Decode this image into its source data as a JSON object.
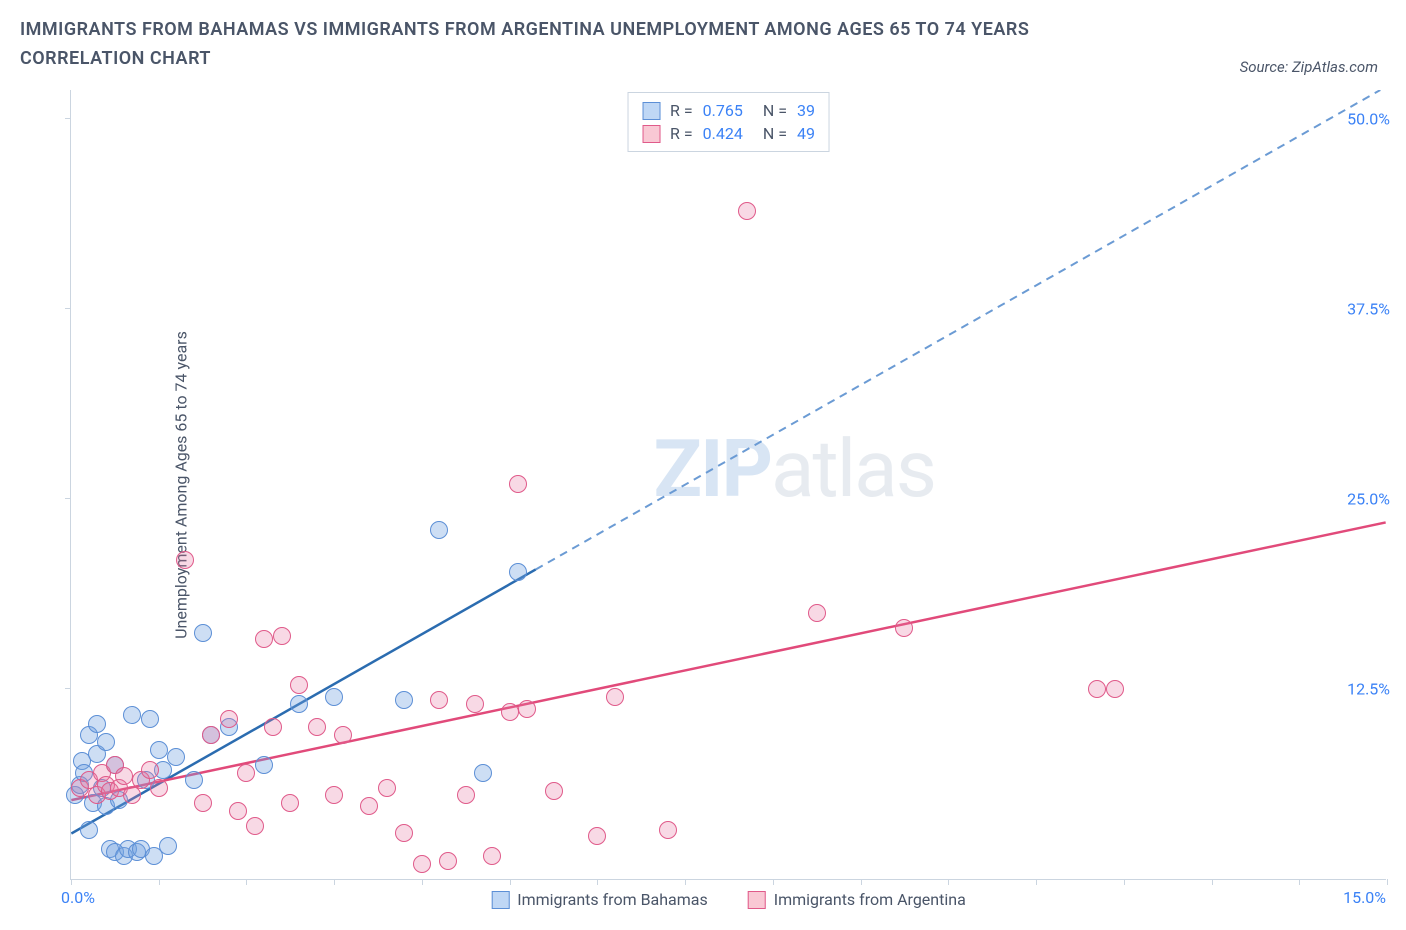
{
  "title": "IMMIGRANTS FROM BAHAMAS VS IMMIGRANTS FROM ARGENTINA UNEMPLOYMENT AMONG AGES 65 TO 74 YEARS CORRELATION CHART",
  "source": "Source: ZipAtlas.com",
  "y_axis_title": "Unemployment Among Ages 65 to 74 years",
  "watermark_zip": "ZIP",
  "watermark_atlas": "atlas",
  "chart": {
    "type": "scatter",
    "xlim": [
      0,
      15
    ],
    "ylim": [
      0,
      52
    ],
    "x_ticks": [
      0,
      1,
      2,
      3,
      4,
      5,
      6,
      7,
      8,
      9,
      10,
      11,
      12,
      13,
      14,
      15
    ],
    "y_ticks_labeled": [
      {
        "v": 12.5,
        "label": "12.5%"
      },
      {
        "v": 25.0,
        "label": "25.0%"
      },
      {
        "v": 37.5,
        "label": "37.5%"
      },
      {
        "v": 50.0,
        "label": "50.0%"
      }
    ],
    "x_start_label": "0.0%",
    "x_end_label": "15.0%",
    "background_color": "#ffffff",
    "axis_color": "#cbd5e0",
    "tick_label_color": "#3b82f6",
    "point_radius": 9,
    "series": [
      {
        "name": "Immigrants from Bahamas",
        "swatch_fill": "#bfd7f5",
        "swatch_stroke": "#5c8fd6",
        "point_fill": "rgba(112,161,224,0.35)",
        "point_stroke": "#5c8fd6",
        "R": "0.765",
        "N": "39",
        "trend": {
          "x1": 0,
          "y1": 3.0,
          "x2": 5.3,
          "y2": 20.4,
          "x2d": 15,
          "y2d": 52.2,
          "solid_color": "#2b6cb0",
          "dash_color": "#6b9bd4",
          "width": 2.5
        },
        "points": [
          [
            0.05,
            5.5
          ],
          [
            0.1,
            6.2
          ],
          [
            0.12,
            7.8
          ],
          [
            0.15,
            7.0
          ],
          [
            0.2,
            3.2
          ],
          [
            0.2,
            9.5
          ],
          [
            0.25,
            5.0
          ],
          [
            0.3,
            8.2
          ],
          [
            0.3,
            10.2
          ],
          [
            0.35,
            6.0
          ],
          [
            0.4,
            4.8
          ],
          [
            0.4,
            9.0
          ],
          [
            0.45,
            2.0
          ],
          [
            0.5,
            1.8
          ],
          [
            0.5,
            7.5
          ],
          [
            0.55,
            5.2
          ],
          [
            0.6,
            1.5
          ],
          [
            0.65,
            2.0
          ],
          [
            0.7,
            10.8
          ],
          [
            0.75,
            1.8
          ],
          [
            0.8,
            2.0
          ],
          [
            0.85,
            6.5
          ],
          [
            0.9,
            10.5
          ],
          [
            0.95,
            1.5
          ],
          [
            1.0,
            8.5
          ],
          [
            1.05,
            7.2
          ],
          [
            1.1,
            2.2
          ],
          [
            1.2,
            8.0
          ],
          [
            1.4,
            6.5
          ],
          [
            1.5,
            16.2
          ],
          [
            1.6,
            9.5
          ],
          [
            1.8,
            10.0
          ],
          [
            2.2,
            7.5
          ],
          [
            2.6,
            11.5
          ],
          [
            3.0,
            12.0
          ],
          [
            3.8,
            11.8
          ],
          [
            4.2,
            23.0
          ],
          [
            4.7,
            7.0
          ],
          [
            5.1,
            20.2
          ]
        ]
      },
      {
        "name": "Immigrants from Argentina",
        "swatch_fill": "#f9c8d4",
        "swatch_stroke": "#e05a8a",
        "point_fill": "rgba(230,120,160,0.28)",
        "point_stroke": "#e05a8a",
        "R": "0.424",
        "N": "49",
        "trend": {
          "x1": 0,
          "y1": 5.2,
          "x2": 15,
          "y2": 23.5,
          "solid_color": "#e14a7a",
          "width": 2.5
        },
        "points": [
          [
            0.1,
            6.0
          ],
          [
            0.2,
            6.5
          ],
          [
            0.3,
            5.5
          ],
          [
            0.35,
            7.0
          ],
          [
            0.4,
            6.2
          ],
          [
            0.45,
            5.8
          ],
          [
            0.5,
            7.5
          ],
          [
            0.55,
            6.0
          ],
          [
            0.6,
            6.8
          ],
          [
            0.7,
            5.5
          ],
          [
            0.8,
            6.5
          ],
          [
            0.9,
            7.2
          ],
          [
            1.0,
            6.0
          ],
          [
            1.3,
            21.0
          ],
          [
            1.5,
            5.0
          ],
          [
            1.6,
            9.5
          ],
          [
            1.8,
            10.5
          ],
          [
            1.9,
            4.5
          ],
          [
            2.0,
            7.0
          ],
          [
            2.1,
            3.5
          ],
          [
            2.2,
            15.8
          ],
          [
            2.3,
            10.0
          ],
          [
            2.4,
            16.0
          ],
          [
            2.5,
            5.0
          ],
          [
            2.6,
            12.8
          ],
          [
            2.8,
            10.0
          ],
          [
            3.0,
            5.5
          ],
          [
            3.1,
            9.5
          ],
          [
            3.4,
            4.8
          ],
          [
            3.6,
            6.0
          ],
          [
            3.8,
            3.0
          ],
          [
            4.0,
            1.0
          ],
          [
            4.2,
            11.8
          ],
          [
            4.3,
            1.2
          ],
          [
            4.5,
            5.5
          ],
          [
            4.6,
            11.5
          ],
          [
            4.8,
            1.5
          ],
          [
            5.0,
            11.0
          ],
          [
            5.1,
            26.0
          ],
          [
            5.2,
            11.2
          ],
          [
            5.5,
            5.8
          ],
          [
            6.0,
            2.8
          ],
          [
            6.8,
            3.2
          ],
          [
            7.7,
            44.0
          ],
          [
            8.5,
            17.5
          ],
          [
            9.5,
            16.5
          ],
          [
            11.7,
            12.5
          ],
          [
            11.9,
            12.5
          ],
          [
            6.2,
            12.0
          ]
        ]
      }
    ]
  }
}
